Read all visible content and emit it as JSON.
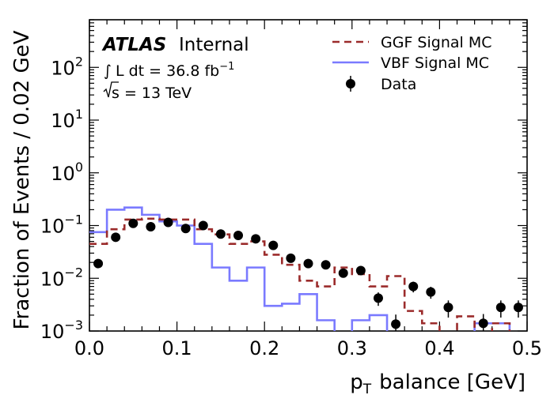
{
  "chart_data": {
    "type": "step-histogram",
    "xlabel_sub": "T",
    "xlabel_rest": "balance [GeV]",
    "ylabel": "Fraction of Events / 0.02 GeV",
    "xlim": [
      0.0,
      0.5
    ],
    "ylim": [
      0.001,
      800
    ],
    "yscale": "log",
    "x_tick_labels": [
      "0.0",
      "0.1",
      "0.2",
      "0.3",
      "0.4",
      "0.5"
    ],
    "y_tick_labels": [
      {
        "base": "10",
        "exp": "2"
      },
      {
        "base": "10",
        "exp": "1"
      },
      {
        "base": "10",
        "exp": "0"
      },
      {
        "base": "10",
        "exp": "−1"
      },
      {
        "base": "10",
        "exp": "−2"
      },
      {
        "base": "10",
        "exp": "−3"
      }
    ],
    "grid": false,
    "legend_position": "top-right",
    "annotation": {
      "experiment": "ATLAS",
      "status": "Internal",
      "lumi_rest": "L dt = 36.8 fb",
      "lumi_sup": "−1",
      "energy_rest": "s = 13 TeV"
    },
    "bin_width": 0.02,
    "bin_edges": [
      0.0,
      0.02,
      0.04,
      0.06,
      0.08,
      0.1,
      0.12,
      0.14,
      0.16,
      0.18,
      0.2,
      0.22,
      0.24,
      0.26,
      0.28,
      0.3,
      0.32,
      0.34,
      0.36,
      0.38,
      0.4,
      0.42,
      0.44,
      0.46,
      0.48,
      0.5
    ],
    "series": [
      {
        "name": "GGF Signal MC",
        "style": "dashed-step",
        "color": "#9b2b2b",
        "values": [
          0.045,
          0.085,
          0.13,
          0.135,
          0.13,
          0.13,
          0.085,
          0.068,
          0.045,
          0.05,
          0.028,
          0.018,
          0.009,
          0.007,
          0.016,
          0.012,
          0.007,
          0.011,
          0.0024,
          0.0014,
          0.0,
          0.0019,
          0.0,
          0.0014,
          0.0
        ]
      },
      {
        "name": "VBF Signal MC",
        "style": "solid-step",
        "color": "#7a7aff",
        "values": [
          0.075,
          0.2,
          0.22,
          0.16,
          0.12,
          0.1,
          0.045,
          0.016,
          0.009,
          0.016,
          0.003,
          0.0033,
          0.005,
          0.0016,
          0.0007,
          0.0016,
          0.002,
          0.0,
          0.0,
          0.0,
          0.0,
          0.0,
          0.0014,
          0.0014,
          0.0
        ]
      },
      {
        "name": "Data",
        "style": "points",
        "color": "#000000",
        "x": [
          0.01,
          0.03,
          0.05,
          0.07,
          0.09,
          0.11,
          0.13,
          0.15,
          0.17,
          0.19,
          0.21,
          0.23,
          0.25,
          0.27,
          0.29,
          0.31,
          0.33,
          0.35,
          0.37,
          0.39,
          0.41,
          0.45,
          0.47,
          0.49
        ],
        "values": [
          0.019,
          0.06,
          0.11,
          0.095,
          0.115,
          0.088,
          0.1,
          0.069,
          0.065,
          0.056,
          0.042,
          0.024,
          0.019,
          0.018,
          0.0125,
          0.014,
          0.0042,
          0.00135,
          0.007,
          0.0055,
          0.0028,
          0.0014,
          0.0028,
          0.0028
        ],
        "errors": [
          0.0025,
          0.004,
          0.006,
          0.005,
          0.006,
          0.005,
          0.006,
          0.0045,
          0.0045,
          0.004,
          0.0035,
          0.0028,
          0.0025,
          0.0024,
          0.002,
          0.0021,
          0.0012,
          0.0007,
          0.0016,
          0.0014,
          0.001,
          0.0007,
          0.001,
          0.001
        ]
      }
    ]
  }
}
